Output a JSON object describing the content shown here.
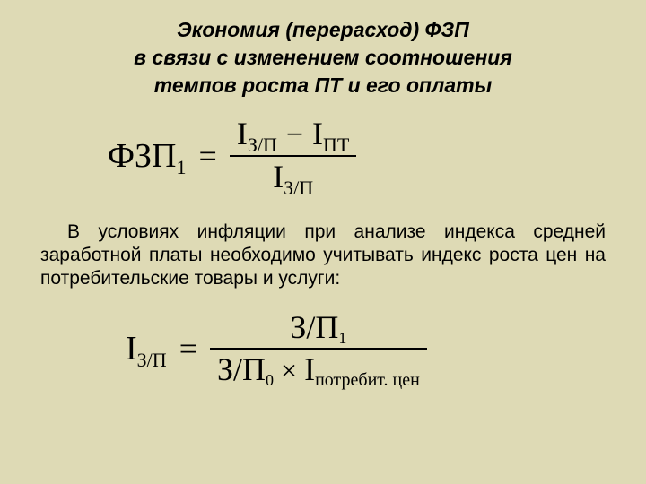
{
  "title_line1": "Экономия (перерасход) ФЗП",
  "title_line2": "в связи с изменением соотношения",
  "title_line3": "темпов роста ПТ и его оплаты",
  "formula1": {
    "lhs_main": "ФЗП",
    "lhs_sub": "1",
    "num_a_main": "I",
    "num_a_sub": "З/П",
    "num_b_main": "I",
    "num_b_sub": "ПТ",
    "den_main": "I",
    "den_sub": "З/П"
  },
  "paragraph": "В условиях инфляции при анализе индекса средней заработной платы необходимо учитывать индекс роста цен на потребительские товары и услуги:",
  "formula2": {
    "lhs_main": "I",
    "lhs_sub": "З/П",
    "num_main": "З/П",
    "num_sub": "1",
    "den_a_main": "З/П",
    "den_a_sub": "0",
    "den_b_main": "I",
    "den_b_sub": "потребит. цен"
  }
}
